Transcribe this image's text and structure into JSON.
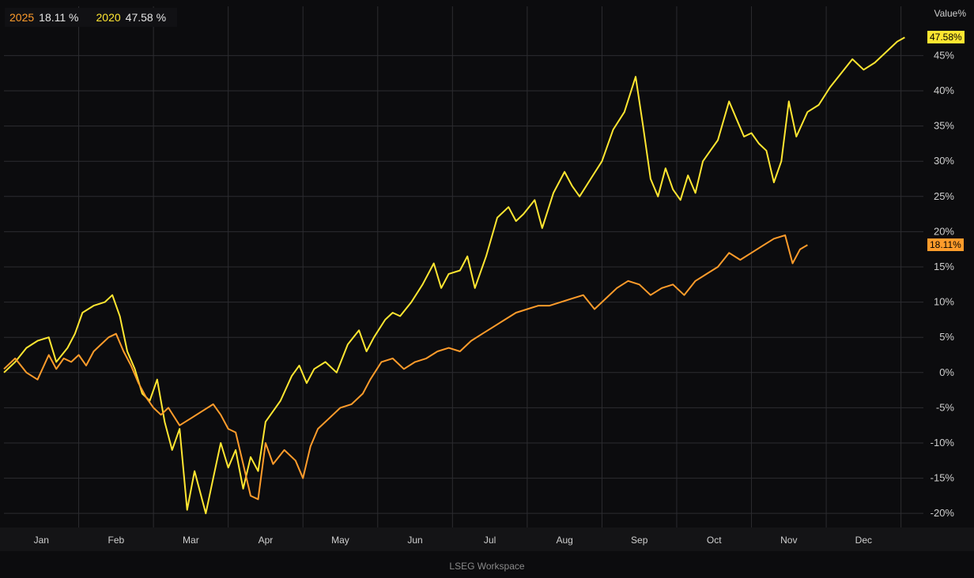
{
  "legend": {
    "s2025_label": "2025",
    "s2025_value": "18.11 %",
    "s2020_label": "2020",
    "s2020_value": "47.58 %"
  },
  "y_axis_title": "Value%",
  "footer": "LSEG Workspace",
  "last_tags": {
    "s2020": "47.58%",
    "s2025": "18.11%"
  },
  "colors": {
    "s2020": "#ffe631",
    "s2025": "#ff9c2b",
    "background": "#0c0c0e",
    "grid": "#2c2c30",
    "text": "#cfcfcf"
  },
  "chart_data": {
    "type": "line",
    "title": "",
    "xlabel": "",
    "ylabel": "Value%",
    "xlim": [
      0,
      12.3
    ],
    "ylim": [
      -22,
      52
    ],
    "x_ticks": [
      {
        "label": "Jan",
        "x": 0.5
      },
      {
        "label": "Feb",
        "x": 1.5
      },
      {
        "label": "Mar",
        "x": 2.5
      },
      {
        "label": "Apr",
        "x": 3.5
      },
      {
        "label": "May",
        "x": 4.5
      },
      {
        "label": "Jun",
        "x": 5.5
      },
      {
        "label": "Jul",
        "x": 6.5
      },
      {
        "label": "Aug",
        "x": 7.5
      },
      {
        "label": "Sep",
        "x": 8.5
      },
      {
        "label": "Oct",
        "x": 9.5
      },
      {
        "label": "Nov",
        "x": 10.5
      },
      {
        "label": "Dec",
        "x": 11.5
      }
    ],
    "y_ticks": [
      -20,
      -15,
      -10,
      -5,
      0,
      5,
      10,
      15,
      20,
      25,
      30,
      35,
      40,
      45
    ],
    "y_tick_labels": [
      "-20%",
      "-15%",
      "-10%",
      "-5%",
      "0%",
      "5%",
      "10%",
      "15%",
      "20%",
      "25%",
      "30%",
      "35%",
      "40%",
      "45%"
    ],
    "grid": true,
    "legend_position": "top-left",
    "series": [
      {
        "name": "2020",
        "color": "#ffe631",
        "points": [
          [
            0.0,
            0
          ],
          [
            0.15,
            1.5
          ],
          [
            0.3,
            3.5
          ],
          [
            0.45,
            4.5
          ],
          [
            0.6,
            5.0
          ],
          [
            0.7,
            1.5
          ],
          [
            0.85,
            3.5
          ],
          [
            0.95,
            5.5
          ],
          [
            1.05,
            8.5
          ],
          [
            1.2,
            9.5
          ],
          [
            1.35,
            10.0
          ],
          [
            1.45,
            11.0
          ],
          [
            1.55,
            8.0
          ],
          [
            1.65,
            3.0
          ],
          [
            1.75,
            0.5
          ],
          [
            1.85,
            -3.0
          ],
          [
            1.95,
            -4.0
          ],
          [
            2.05,
            -1.0
          ],
          [
            2.15,
            -7.0
          ],
          [
            2.25,
            -11.0
          ],
          [
            2.35,
            -8.0
          ],
          [
            2.45,
            -19.5
          ],
          [
            2.55,
            -14.0
          ],
          [
            2.7,
            -20.0
          ],
          [
            2.8,
            -15.0
          ],
          [
            2.9,
            -10.0
          ],
          [
            3.0,
            -13.5
          ],
          [
            3.1,
            -11.0
          ],
          [
            3.2,
            -16.5
          ],
          [
            3.3,
            -12.0
          ],
          [
            3.4,
            -14.0
          ],
          [
            3.5,
            -7.0
          ],
          [
            3.6,
            -5.5
          ],
          [
            3.7,
            -4.0
          ],
          [
            3.85,
            -0.5
          ],
          [
            3.95,
            1.0
          ],
          [
            4.05,
            -1.5
          ],
          [
            4.15,
            0.5
          ],
          [
            4.3,
            1.5
          ],
          [
            4.45,
            0.0
          ],
          [
            4.6,
            4.0
          ],
          [
            4.75,
            6.0
          ],
          [
            4.85,
            3.0
          ],
          [
            4.95,
            5.0
          ],
          [
            5.1,
            7.5
          ],
          [
            5.2,
            8.5
          ],
          [
            5.3,
            8.0
          ],
          [
            5.45,
            10.0
          ],
          [
            5.6,
            12.5
          ],
          [
            5.75,
            15.5
          ],
          [
            5.85,
            12.0
          ],
          [
            5.95,
            14.0
          ],
          [
            6.1,
            14.5
          ],
          [
            6.2,
            16.5
          ],
          [
            6.3,
            12.0
          ],
          [
            6.45,
            16.5
          ],
          [
            6.6,
            22.0
          ],
          [
            6.75,
            23.5
          ],
          [
            6.85,
            21.5
          ],
          [
            6.95,
            22.5
          ],
          [
            7.1,
            24.5
          ],
          [
            7.2,
            20.5
          ],
          [
            7.35,
            25.5
          ],
          [
            7.5,
            28.5
          ],
          [
            7.6,
            26.5
          ],
          [
            7.7,
            25.0
          ],
          [
            7.85,
            27.5
          ],
          [
            8.0,
            30.0
          ],
          [
            8.15,
            34.5
          ],
          [
            8.3,
            37.0
          ],
          [
            8.45,
            42.0
          ],
          [
            8.55,
            35.0
          ],
          [
            8.65,
            27.5
          ],
          [
            8.75,
            25.0
          ],
          [
            8.85,
            29.0
          ],
          [
            8.95,
            26.0
          ],
          [
            9.05,
            24.5
          ],
          [
            9.15,
            28.0
          ],
          [
            9.25,
            25.5
          ],
          [
            9.35,
            30.0
          ],
          [
            9.45,
            31.5
          ],
          [
            9.55,
            33.0
          ],
          [
            9.7,
            38.5
          ],
          [
            9.8,
            36.0
          ],
          [
            9.9,
            33.5
          ],
          [
            10.0,
            34.0
          ],
          [
            10.1,
            32.5
          ],
          [
            10.2,
            31.5
          ],
          [
            10.3,
            27.0
          ],
          [
            10.4,
            30.0
          ],
          [
            10.5,
            38.5
          ],
          [
            10.6,
            33.5
          ],
          [
            10.75,
            37.0
          ],
          [
            10.9,
            38.0
          ],
          [
            11.05,
            40.5
          ],
          [
            11.2,
            42.5
          ],
          [
            11.35,
            44.5
          ],
          [
            11.5,
            43.0
          ],
          [
            11.65,
            44.0
          ],
          [
            11.8,
            45.5
          ],
          [
            11.95,
            47.0
          ],
          [
            12.05,
            47.58
          ]
        ]
      },
      {
        "name": "2025",
        "color": "#ff9c2b",
        "points": [
          [
            0.0,
            0.5
          ],
          [
            0.15,
            2.0
          ],
          [
            0.3,
            0.0
          ],
          [
            0.45,
            -1.0
          ],
          [
            0.6,
            2.5
          ],
          [
            0.7,
            0.5
          ],
          [
            0.8,
            2.0
          ],
          [
            0.9,
            1.5
          ],
          [
            1.0,
            2.5
          ],
          [
            1.1,
            1.0
          ],
          [
            1.2,
            3.0
          ],
          [
            1.3,
            4.0
          ],
          [
            1.4,
            5.0
          ],
          [
            1.5,
            5.5
          ],
          [
            1.6,
            3.0
          ],
          [
            1.7,
            1.0
          ],
          [
            1.8,
            -1.5
          ],
          [
            1.9,
            -3.5
          ],
          [
            2.0,
            -5.0
          ],
          [
            2.1,
            -6.0
          ],
          [
            2.2,
            -5.0
          ],
          [
            2.35,
            -7.5
          ],
          [
            2.5,
            -6.5
          ],
          [
            2.65,
            -5.5
          ],
          [
            2.8,
            -4.5
          ],
          [
            2.9,
            -6.0
          ],
          [
            3.0,
            -8.0
          ],
          [
            3.1,
            -8.5
          ],
          [
            3.2,
            -13.0
          ],
          [
            3.3,
            -17.5
          ],
          [
            3.4,
            -18.0
          ],
          [
            3.5,
            -10.0
          ],
          [
            3.6,
            -13.0
          ],
          [
            3.75,
            -11.0
          ],
          [
            3.9,
            -12.5
          ],
          [
            4.0,
            -15.0
          ],
          [
            4.1,
            -10.5
          ],
          [
            4.2,
            -8.0
          ],
          [
            4.35,
            -6.5
          ],
          [
            4.5,
            -5.0
          ],
          [
            4.65,
            -4.5
          ],
          [
            4.8,
            -3.0
          ],
          [
            4.9,
            -1.0
          ],
          [
            5.05,
            1.5
          ],
          [
            5.2,
            2.0
          ],
          [
            5.35,
            0.5
          ],
          [
            5.5,
            1.5
          ],
          [
            5.65,
            2.0
          ],
          [
            5.8,
            3.0
          ],
          [
            5.95,
            3.5
          ],
          [
            6.1,
            3.0
          ],
          [
            6.25,
            4.5
          ],
          [
            6.4,
            5.5
          ],
          [
            6.55,
            6.5
          ],
          [
            6.7,
            7.5
          ],
          [
            6.85,
            8.5
          ],
          [
            7.0,
            9.0
          ],
          [
            7.15,
            9.5
          ],
          [
            7.3,
            9.5
          ],
          [
            7.45,
            10.0
          ],
          [
            7.6,
            10.5
          ],
          [
            7.75,
            11.0
          ],
          [
            7.9,
            9.0
          ],
          [
            8.05,
            10.5
          ],
          [
            8.2,
            12.0
          ],
          [
            8.35,
            13.0
          ],
          [
            8.5,
            12.5
          ],
          [
            8.65,
            11.0
          ],
          [
            8.8,
            12.0
          ],
          [
            8.95,
            12.5
          ],
          [
            9.1,
            11.0
          ],
          [
            9.25,
            13.0
          ],
          [
            9.4,
            14.0
          ],
          [
            9.55,
            15.0
          ],
          [
            9.7,
            17.0
          ],
          [
            9.85,
            16.0
          ],
          [
            10.0,
            17.0
          ],
          [
            10.15,
            18.0
          ],
          [
            10.3,
            19.0
          ],
          [
            10.45,
            19.5
          ],
          [
            10.55,
            15.5
          ],
          [
            10.65,
            17.5
          ],
          [
            10.75,
            18.11
          ]
        ]
      }
    ]
  }
}
